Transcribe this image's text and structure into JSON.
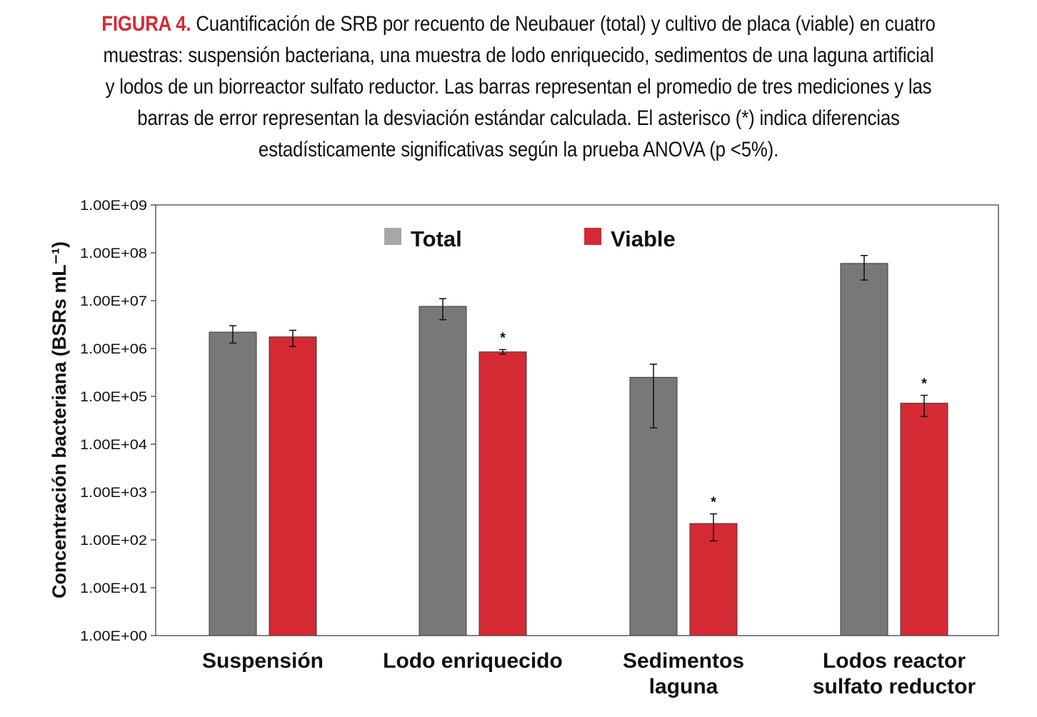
{
  "caption": {
    "label": "FIGURA 4.",
    "text": "Cuantificación de SRB por recuento de Neubauer (total) y cultivo de placa (viable) en cuatro muestras: suspensión bacteriana, una muestra de lodo enriquecido, sedimentos de una laguna artificial y lodos de un biorreactor sulfato reductor. Las barras representan el promedio de tres mediciones y las barras de error representan la desviación estándar calculada. El asterisco (*) indica diferencias estadísticamente significativas según la prueba ANOVA (p <5%)."
  },
  "chart_data": {
    "type": "bar",
    "yscale": "log",
    "ylim": [
      1,
      1000000000
    ],
    "ylabel": "Concentración bacteriana (BSRs mL⁻¹)",
    "xlabel": "",
    "grid": false,
    "legend_position": "top",
    "yticks": [
      "1.00E+00",
      "1.00E+01",
      "1.00E+02",
      "1.00E+03",
      "1.00E+04",
      "1.00E+05",
      "1.00E+06",
      "1.00E+07",
      "1.00E+08",
      "1.00E+09"
    ],
    "categories": [
      [
        "Suspensión"
      ],
      [
        "Lodo enriquecido"
      ],
      [
        "Sedimentos",
        "laguna"
      ],
      [
        "Lodos reactor",
        "sulfato reductor"
      ]
    ],
    "series": [
      {
        "name": "Total",
        "color": "#787878",
        "values": [
          2200000,
          7600000,
          250000,
          60000000
        ],
        "error_low": [
          1300000,
          4000000,
          22000,
          27000000
        ],
        "error_high": [
          3000000,
          11000000,
          470000,
          88000000
        ],
        "significant": [
          false,
          false,
          false,
          false
        ]
      },
      {
        "name": "Viable",
        "color": "#d42a33",
        "values": [
          1750000,
          850000,
          220,
          72000
        ],
        "error_low": [
          1100000,
          760000,
          95,
          38000
        ],
        "error_high": [
          2400000,
          950000,
          350,
          105000
        ],
        "significant": [
          false,
          true,
          true,
          true
        ]
      }
    ],
    "significance_marker": "*"
  }
}
